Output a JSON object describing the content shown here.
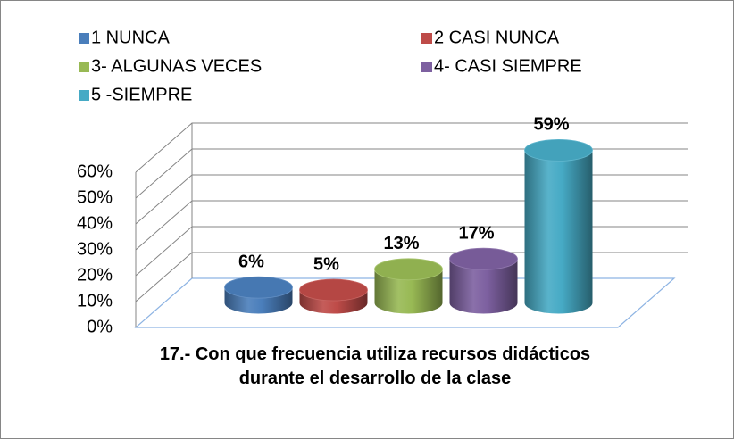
{
  "chart_data": {
    "type": "bar3d",
    "title": "17.- Con que frecuencia utiliza recursos didácticos durante el desarrollo de la clase",
    "series": [
      {
        "name": "1 NUNCA",
        "color": "#4a7ebb",
        "values": [
          6
        ],
        "value_labels": [
          "6%"
        ]
      },
      {
        "name": "2 CASI NUNCA",
        "color": "#be4b48",
        "values": [
          5
        ],
        "value_labels": [
          "5%"
        ]
      },
      {
        "name": "3- ALGUNAS VECES",
        "color": "#98b954",
        "values": [
          13
        ],
        "value_labels": [
          "13%"
        ]
      },
      {
        "name": "4- CASI SIEMPRE",
        "color": "#7d60a0",
        "values": [
          17
        ],
        "value_labels": [
          "17%"
        ]
      },
      {
        "name": "5 -SIEMPRE",
        "color": "#46aac5",
        "values": [
          59
        ],
        "value_labels": [
          "59%"
        ]
      }
    ],
    "ylim": [
      0,
      60
    ],
    "yticks": [
      {
        "value": 0,
        "label": "0%"
      },
      {
        "value": 10,
        "label": "10%"
      },
      {
        "value": 20,
        "label": "20%"
      },
      {
        "value": 30,
        "label": "30%"
      },
      {
        "value": 40,
        "label": "40%"
      },
      {
        "value": 50,
        "label": "50%"
      },
      {
        "value": 60,
        "label": "60%"
      }
    ],
    "grid": true,
    "legend": "top"
  }
}
